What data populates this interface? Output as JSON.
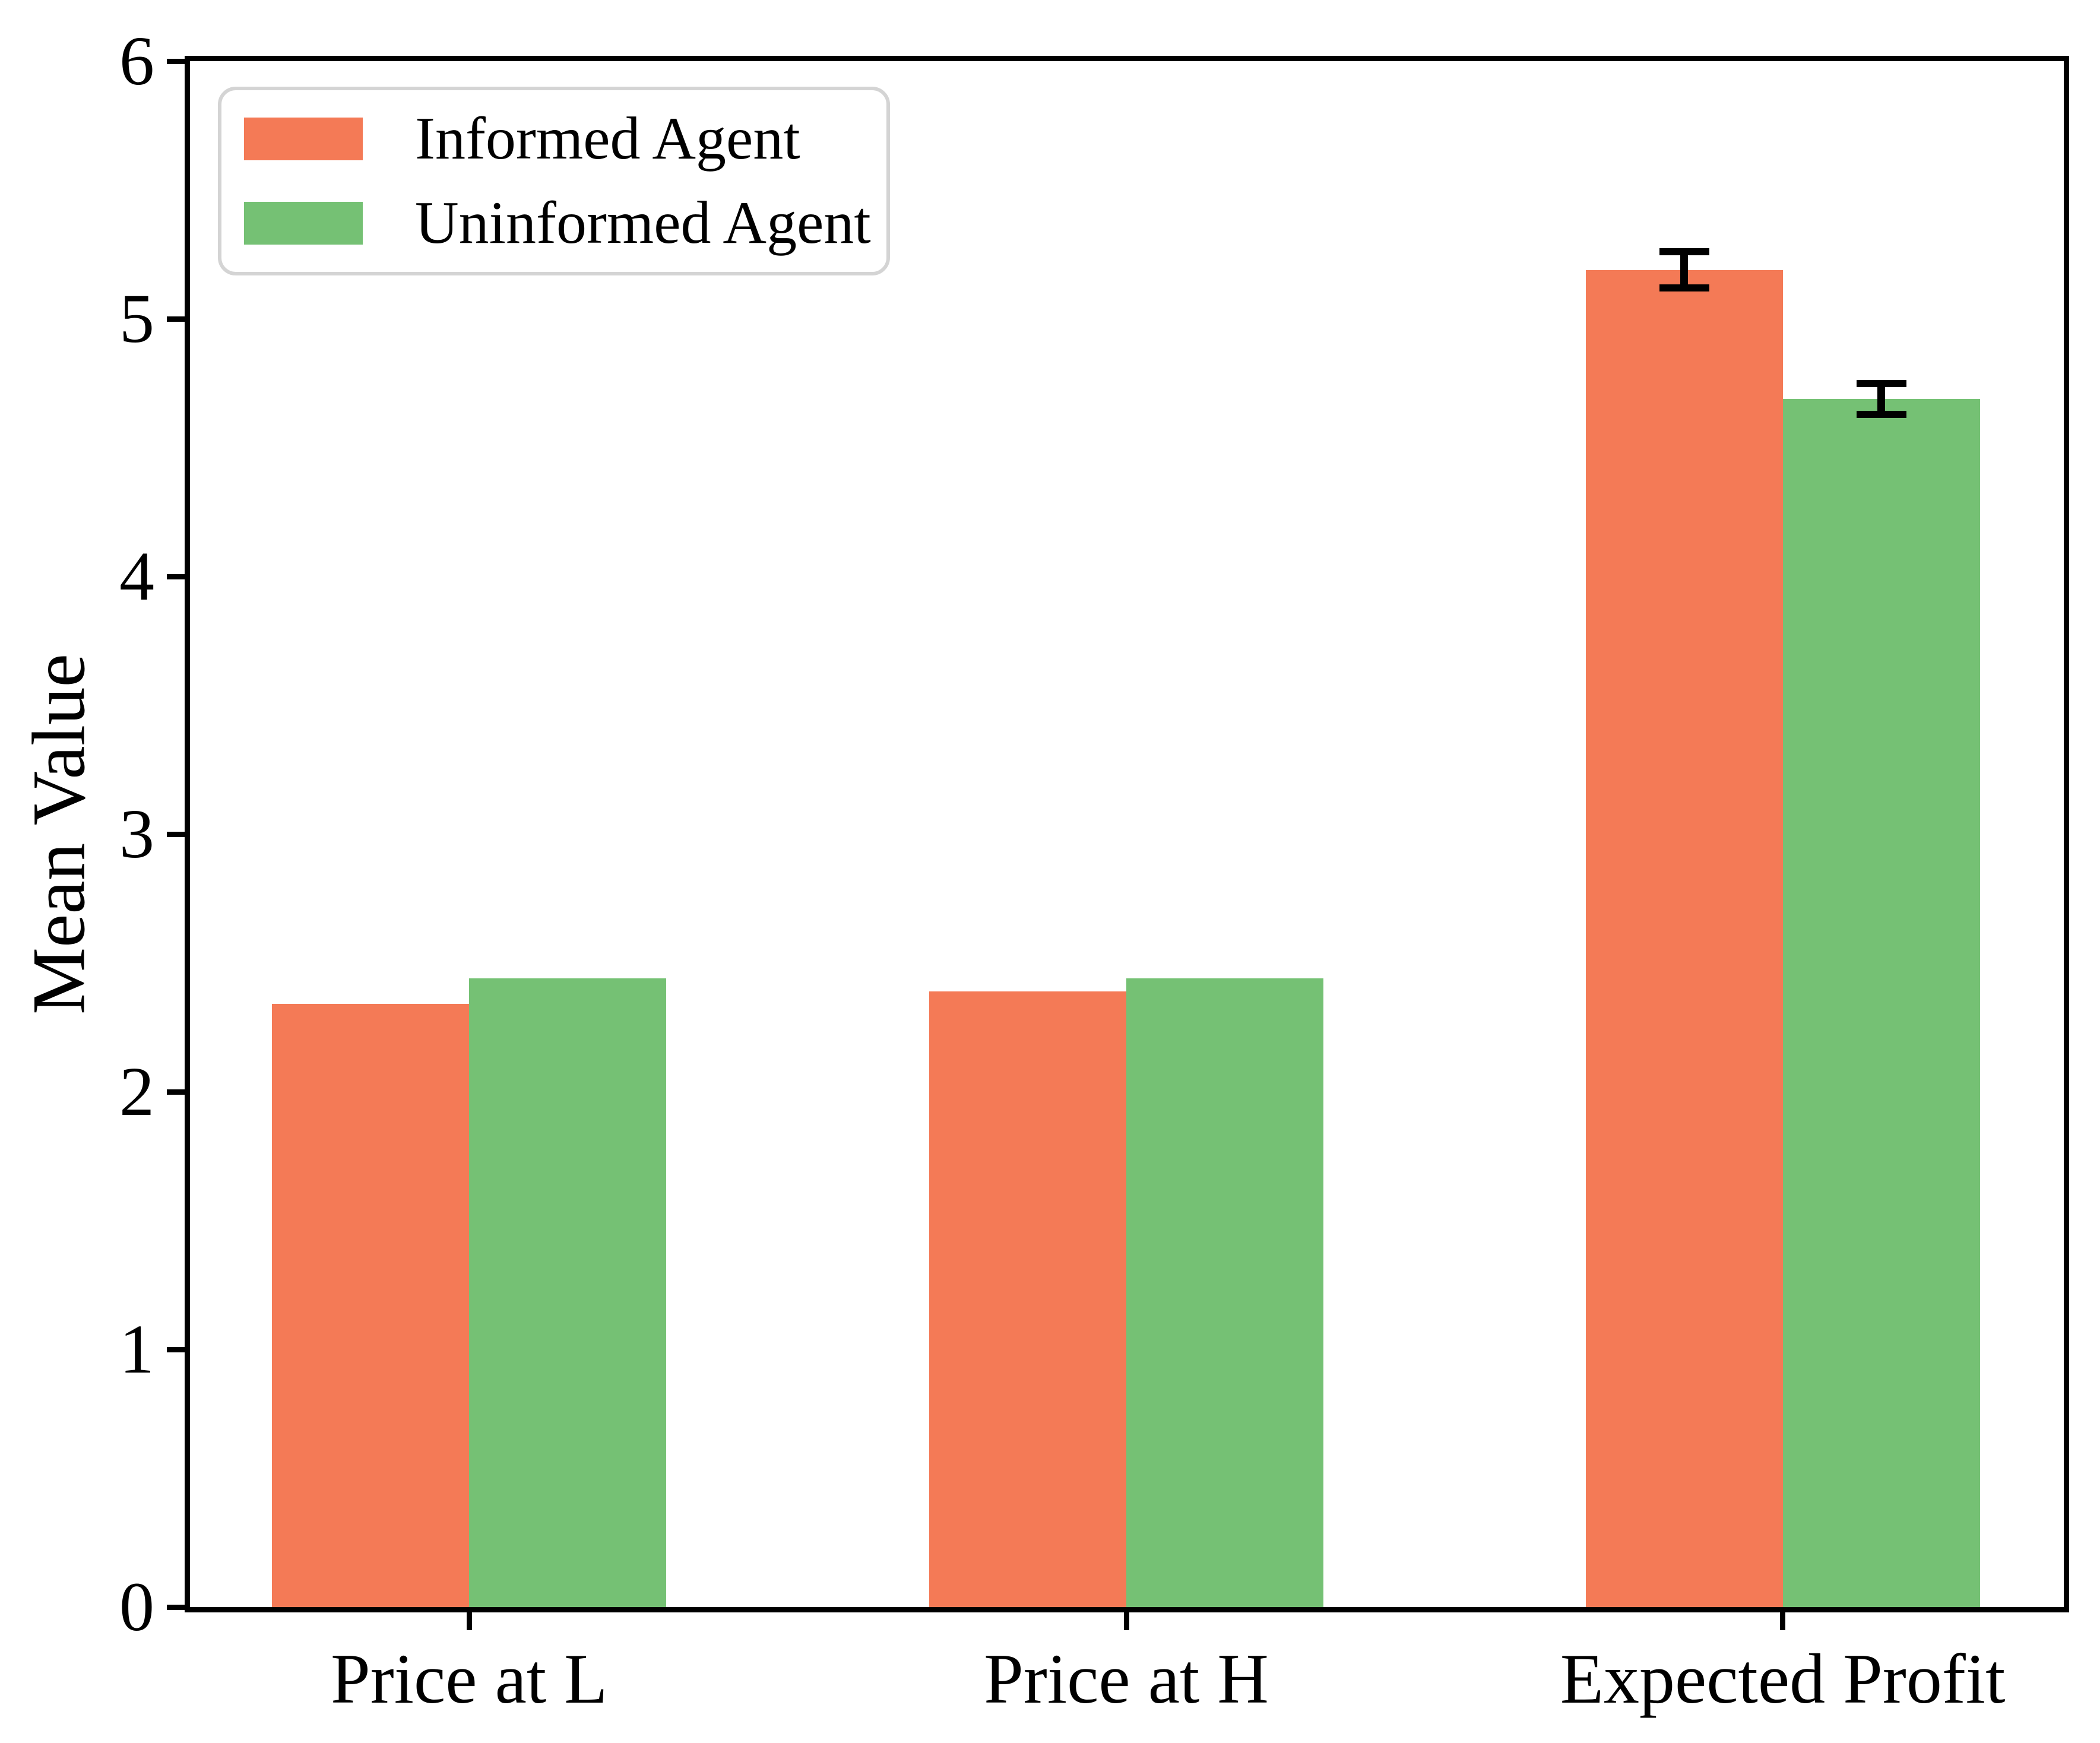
{
  "chart_data": {
    "type": "bar",
    "title": "",
    "xlabel": "",
    "ylabel": "Mean Value",
    "categories": [
      "Price at L",
      "Price at H",
      "Expected Profit"
    ],
    "series": [
      {
        "name": "Informed Agent",
        "color": "#f47a56",
        "values": [
          2.34,
          2.39,
          5.19
        ],
        "errors": [
          null,
          null,
          0.07
        ]
      },
      {
        "name": "Uninformed Agent",
        "color": "#75c174",
        "values": [
          2.44,
          2.44,
          4.69
        ],
        "errors": [
          null,
          null,
          0.06
        ]
      }
    ],
    "ylim": [
      0,
      6
    ],
    "yticks": [
      "0",
      "1",
      "2",
      "3",
      "4",
      "5",
      "6"
    ],
    "grid": false,
    "legend_position": "upper left",
    "error_bar_color": "#000000",
    "axis_color": "#000000",
    "background_color": "#ffffff"
  }
}
